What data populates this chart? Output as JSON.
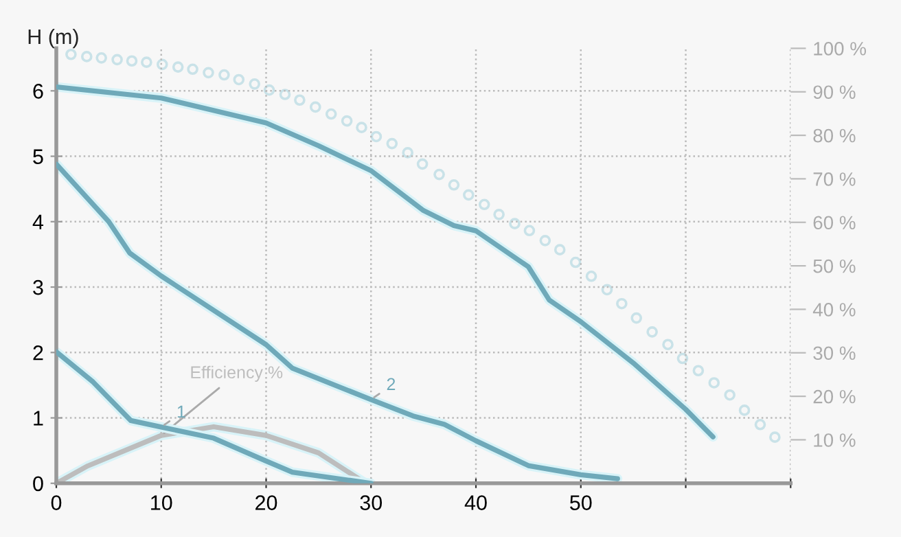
{
  "chart_data": {
    "type": "line",
    "ylabel": "H (m)",
    "xlim": [
      0,
      70
    ],
    "xticks": [
      0,
      10,
      20,
      30,
      40,
      50,
      {
        "value": 60,
        "label": null
      },
      {
        "value": 70,
        "label": null
      }
    ],
    "ylim": [
      0,
      6.65
    ],
    "yticks": [
      0,
      1,
      2,
      3,
      4,
      5,
      6
    ],
    "y2lim": [
      0,
      100
    ],
    "y2ticks": [
      {
        "value": 10,
        "label": "10 %"
      },
      {
        "value": 20,
        "label": "20 %"
      },
      {
        "value": 30,
        "label": "30 %"
      },
      {
        "value": 40,
        "label": "40 %"
      },
      {
        "value": 50,
        "label": "50 %"
      },
      {
        "value": 60,
        "label": "60 %"
      },
      {
        "value": 70,
        "label": "70 %"
      },
      {
        "value": 80,
        "label": "80 %"
      },
      {
        "value": 90,
        "label": "90 %"
      },
      {
        "value": 100,
        "label": "100 %"
      }
    ],
    "grid": true,
    "legend": false,
    "series": [
      {
        "color": "#6fa9b9",
        "x": [
          0,
          10,
          20,
          25,
          30,
          35,
          37.9,
          40,
          45,
          47,
          50,
          55,
          60,
          62.6
        ],
        "values": [
          6.06,
          5.89,
          5.51,
          5.16,
          4.78,
          4.17,
          3.94,
          3.86,
          3.31,
          2.8,
          2.47,
          1.84,
          1.13,
          0.71
        ]
      },
      {
        "name": "2",
        "color": "#6fa9b9",
        "x": [
          0,
          5,
          7,
          10,
          20,
          22.5,
          30,
          34,
          37,
          40,
          45,
          50,
          53.5
        ],
        "values": [
          4.88,
          4.0,
          3.52,
          3.17,
          2.12,
          1.76,
          1.28,
          1.03,
          0.9,
          0.65,
          0.27,
          0.13,
          0.07
        ]
      },
      {
        "name": "1",
        "color": "#6fa9b9",
        "x": [
          0,
          3.5,
          7.1,
          10,
          15,
          20,
          22.5,
          30
        ],
        "values": [
          2.01,
          1.55,
          0.96,
          0.86,
          0.69,
          0.34,
          0.17,
          0
        ]
      },
      {
        "name": "Efficiency %",
        "axis": "y2",
        "color": "#bdbdbd",
        "x": [
          0,
          3,
          7,
          10,
          15,
          20,
          25,
          29.5
        ],
        "values": [
          0,
          4,
          8,
          11,
          13,
          11,
          7,
          0
        ]
      },
      {
        "type": "scatter",
        "axis": "y2",
        "marker": "circle",
        "color": "#c9e2e8",
        "x": [
          1.4,
          2.9,
          4.3,
          5.8,
          7.2,
          8.6,
          10.1,
          11.6,
          13.0,
          14.5,
          16.0,
          17.4,
          18.9,
          20.3,
          21.8,
          23.2,
          24.7,
          26.2,
          27.7,
          29.1,
          30.5,
          32.0,
          33.5,
          34.9,
          36.5,
          37.9,
          39.3,
          40.8,
          42.2,
          43.7,
          45.1,
          46.6,
          48.0,
          49.5,
          51.0,
          52.5,
          53.9,
          55.3,
          56.8,
          58.3,
          59.7,
          61.2,
          62.7,
          64.2,
          65.6,
          67.1,
          68.5
        ],
        "values": [
          98.6,
          98.1,
          97.8,
          97.4,
          97.1,
          96.8,
          96.3,
          95.7,
          95.2,
          94.4,
          93.9,
          92.8,
          91.8,
          90.4,
          89.4,
          88.1,
          86.5,
          84.9,
          83.3,
          81.8,
          79.7,
          78.1,
          76.0,
          73.4,
          71.0,
          68.6,
          66.3,
          64.1,
          61.8,
          59.7,
          58.1,
          55.8,
          53.7,
          50.8,
          47.6,
          44.5,
          41.3,
          38.0,
          34.8,
          31.9,
          28.7,
          25.9,
          23.1,
          20.3,
          16.8,
          13.5,
          10.6
        ]
      }
    ]
  }
}
